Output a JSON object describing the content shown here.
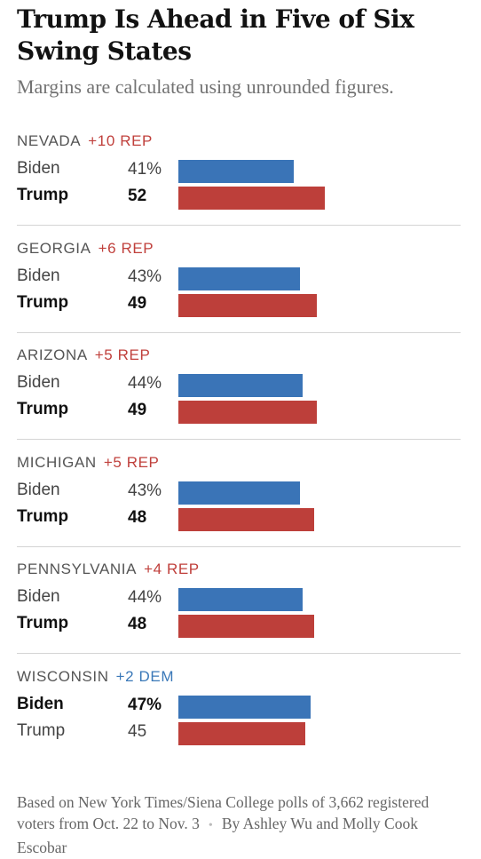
{
  "title": "Trump Is Ahead in Five of Six Swing States",
  "subtitle": "Margins are calculated using unrounded figures.",
  "colors": {
    "biden": "#3a74b7",
    "trump": "#bd3f3a",
    "rep_text": "#c0403c",
    "dem_text": "#3a78b8"
  },
  "chart_data": {
    "type": "bar",
    "title": "Trump Is Ahead in Five of Six Swing States",
    "subtitle": "Margins are calculated using unrounded figures.",
    "categories": [
      "NEVADA",
      "GEORGIA",
      "ARIZONA",
      "MICHIGAN",
      "PENNSYLVANIA",
      "WISCONSIN"
    ],
    "series": [
      {
        "name": "Biden",
        "values": [
          41,
          43,
          44,
          43,
          44,
          47
        ]
      },
      {
        "name": "Trump",
        "values": [
          52,
          49,
          49,
          48,
          48,
          45
        ]
      }
    ],
    "margins": [
      "+10 REP",
      "+6 REP",
      "+5 REP",
      "+5 REP",
      "+4 REP",
      "+2 DEM"
    ],
    "states": [
      {
        "name": "NEVADA",
        "margin": "+10 REP",
        "party": "rep",
        "rows": [
          {
            "candidate": "Biden",
            "value": 41,
            "label": "41%"
          },
          {
            "candidate": "Trump",
            "value": 52,
            "label": "52"
          }
        ],
        "winner": "Trump"
      },
      {
        "name": "GEORGIA",
        "margin": "+6 REP",
        "party": "rep",
        "rows": [
          {
            "candidate": "Biden",
            "value": 43,
            "label": "43%"
          },
          {
            "candidate": "Trump",
            "value": 49,
            "label": "49"
          }
        ],
        "winner": "Trump"
      },
      {
        "name": "ARIZONA",
        "margin": "+5 REP",
        "party": "rep",
        "rows": [
          {
            "candidate": "Biden",
            "value": 44,
            "label": "44%"
          },
          {
            "candidate": "Trump",
            "value": 49,
            "label": "49"
          }
        ],
        "winner": "Trump"
      },
      {
        "name": "MICHIGAN",
        "margin": "+5 REP",
        "party": "rep",
        "rows": [
          {
            "candidate": "Biden",
            "value": 43,
            "label": "43%"
          },
          {
            "candidate": "Trump",
            "value": 48,
            "label": "48"
          }
        ],
        "winner": "Trump"
      },
      {
        "name": "PENNSYLVANIA",
        "margin": "+4 REP",
        "party": "rep",
        "rows": [
          {
            "candidate": "Biden",
            "value": 44,
            "label": "44%"
          },
          {
            "candidate": "Trump",
            "value": 48,
            "label": "48"
          }
        ],
        "winner": "Trump"
      },
      {
        "name": "WISCONSIN",
        "margin": "+2 DEM",
        "party": "dem",
        "rows": [
          {
            "candidate": "Biden",
            "value": 47,
            "label": "47%"
          },
          {
            "candidate": "Trump",
            "value": 45,
            "label": "45"
          }
        ],
        "winner": "Biden"
      }
    ]
  },
  "footnote": {
    "source": "Based on New York Times/Siena College polls of 3,662 registered voters from Oct. 22 to Nov. 3",
    "separator": "•",
    "byline": "By Ashley Wu and Molly Cook Escobar"
  }
}
